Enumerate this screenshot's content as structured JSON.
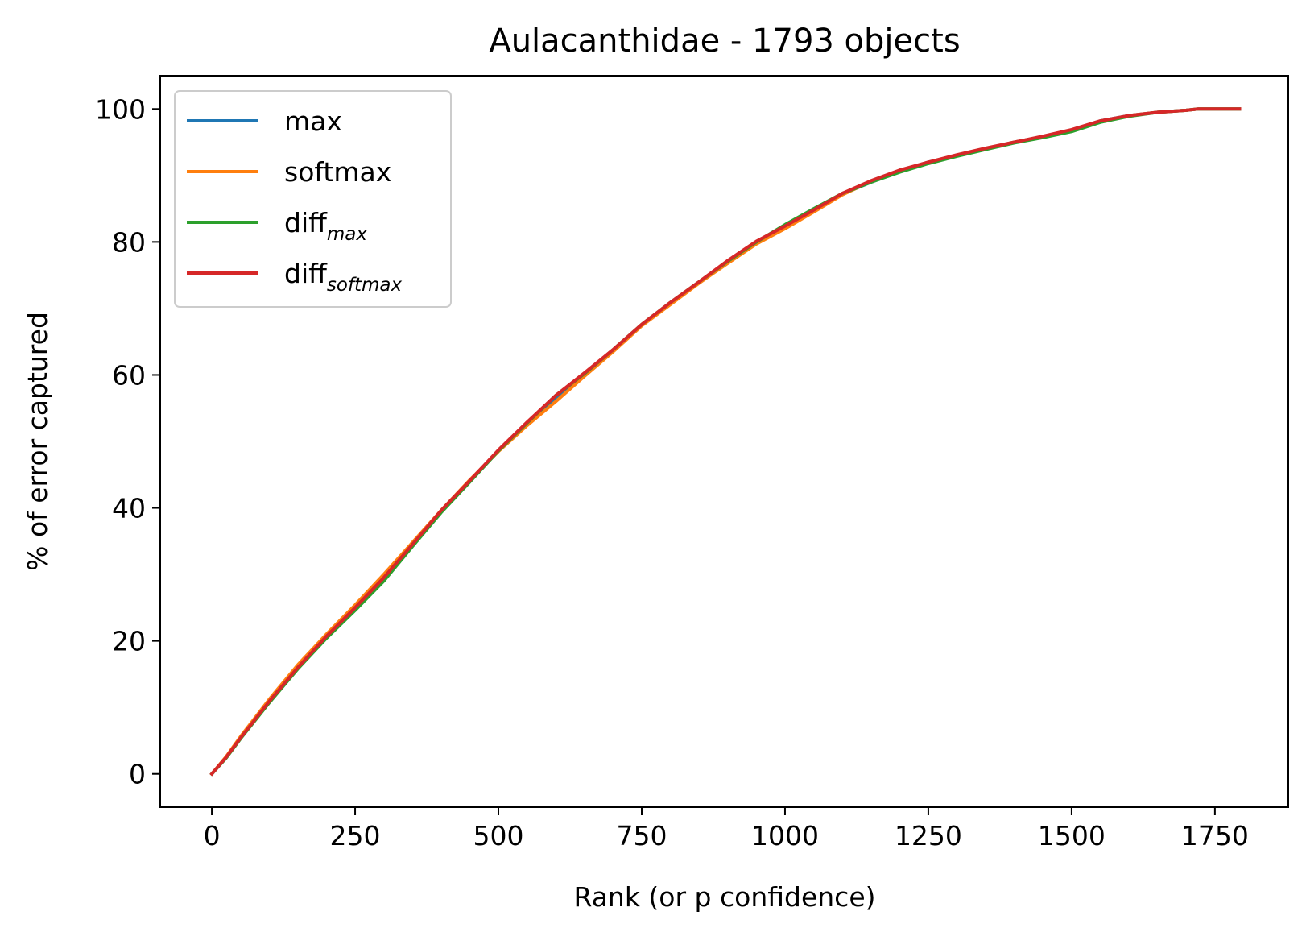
{
  "chart_data": {
    "type": "line",
    "title": "Aulacanthidae - 1793 objects",
    "xlabel": "Rank (or p confidence)",
    "ylabel": "% of error captured",
    "xlim": [
      -90,
      1878
    ],
    "ylim": [
      -5,
      105
    ],
    "xticks": [
      0,
      250,
      500,
      750,
      1000,
      1250,
      1500,
      1750
    ],
    "yticks": [
      0,
      20,
      40,
      60,
      80,
      100
    ],
    "grid": false,
    "legend": {
      "position": "upper-left",
      "entries": [
        {
          "label": "max",
          "sub": "",
          "color": "#1f77b4"
        },
        {
          "label": "softmax",
          "sub": "",
          "color": "#ff7f0e"
        },
        {
          "label": "diff",
          "sub": "max",
          "color": "#2ca02c"
        },
        {
          "label": "diff",
          "sub": "softmax",
          "color": "#d62728"
        }
      ]
    },
    "series": [
      {
        "name": "max",
        "color": "#1f77b4",
        "x": [
          0,
          25,
          50,
          100,
          150,
          200,
          250,
          300,
          350,
          400,
          450,
          500,
          550,
          600,
          650,
          700,
          750,
          800,
          850,
          900,
          950,
          1000,
          1050,
          1100,
          1150,
          1200,
          1250,
          1300,
          1350,
          1400,
          1450,
          1500,
          1550,
          1600,
          1650,
          1700,
          1720,
          1793
        ],
        "y": [
          0,
          2.5,
          5.4,
          10.9,
          16.0,
          20.6,
          25.0,
          29.6,
          34.5,
          39.5,
          44.0,
          48.6,
          52.7,
          56.5,
          60.0,
          63.6,
          67.5,
          70.8,
          73.9,
          77.0,
          79.9,
          82.2,
          84.7,
          87.2,
          89.0,
          90.6,
          92.0,
          93.0,
          94.0,
          95.0,
          95.8,
          96.8,
          98.2,
          99.0,
          99.5,
          99.8,
          100,
          100
        ]
      },
      {
        "name": "softmax",
        "color": "#ff7f0e",
        "x": [
          0,
          25,
          50,
          100,
          150,
          200,
          250,
          300,
          350,
          400,
          450,
          500,
          550,
          600,
          650,
          700,
          750,
          800,
          850,
          900,
          950,
          1000,
          1050,
          1100,
          1150,
          1200,
          1250,
          1300,
          1350,
          1400,
          1450,
          1500,
          1550,
          1600,
          1650,
          1700,
          1720,
          1793
        ],
        "y": [
          0,
          2.6,
          5.6,
          11.2,
          16.4,
          21.0,
          25.4,
          30.0,
          34.8,
          39.6,
          44.2,
          48.5,
          52.4,
          56.0,
          59.8,
          63.5,
          67.4,
          70.6,
          73.8,
          76.8,
          79.7,
          82.0,
          84.5,
          87.1,
          89.1,
          90.7,
          91.9,
          93.0,
          94.0,
          95.0,
          95.8,
          96.8,
          98.1,
          99.0,
          99.5,
          99.8,
          100,
          100
        ]
      },
      {
        "name": "diff_max",
        "color": "#2ca02c",
        "x": [
          0,
          25,
          50,
          100,
          150,
          200,
          250,
          300,
          350,
          400,
          450,
          500,
          550,
          600,
          650,
          700,
          750,
          800,
          850,
          900,
          950,
          1000,
          1050,
          1100,
          1150,
          1200,
          1250,
          1300,
          1350,
          1400,
          1450,
          1500,
          1550,
          1600,
          1650,
          1700,
          1720,
          1793
        ],
        "y": [
          0,
          2.4,
          5.3,
          10.7,
          15.8,
          20.4,
          24.6,
          29.0,
          34.2,
          39.3,
          43.9,
          48.6,
          52.8,
          56.9,
          60.2,
          63.8,
          67.6,
          70.9,
          74.0,
          77.1,
          80.0,
          82.6,
          85.0,
          87.3,
          89.0,
          90.5,
          91.8,
          92.9,
          93.9,
          94.9,
          95.7,
          96.6,
          98.0,
          98.9,
          99.5,
          99.8,
          100,
          100
        ]
      },
      {
        "name": "diff_softmax",
        "color": "#d62728",
        "x": [
          0,
          25,
          50,
          100,
          150,
          200,
          250,
          300,
          350,
          400,
          450,
          500,
          550,
          600,
          650,
          700,
          750,
          800,
          850,
          900,
          950,
          1000,
          1050,
          1100,
          1150,
          1200,
          1250,
          1300,
          1350,
          1400,
          1450,
          1500,
          1550,
          1600,
          1650,
          1700,
          1720,
          1793
        ],
        "y": [
          0,
          2.5,
          5.4,
          10.9,
          16.0,
          20.7,
          25.0,
          29.5,
          34.5,
          39.6,
          44.1,
          48.7,
          52.9,
          56.9,
          60.3,
          63.8,
          67.6,
          70.9,
          74.0,
          77.2,
          80.1,
          82.4,
          84.8,
          87.3,
          89.2,
          90.8,
          92.0,
          93.1,
          94.1,
          95.0,
          95.9,
          96.9,
          98.2,
          99.0,
          99.5,
          99.8,
          100,
          100
        ]
      }
    ]
  }
}
